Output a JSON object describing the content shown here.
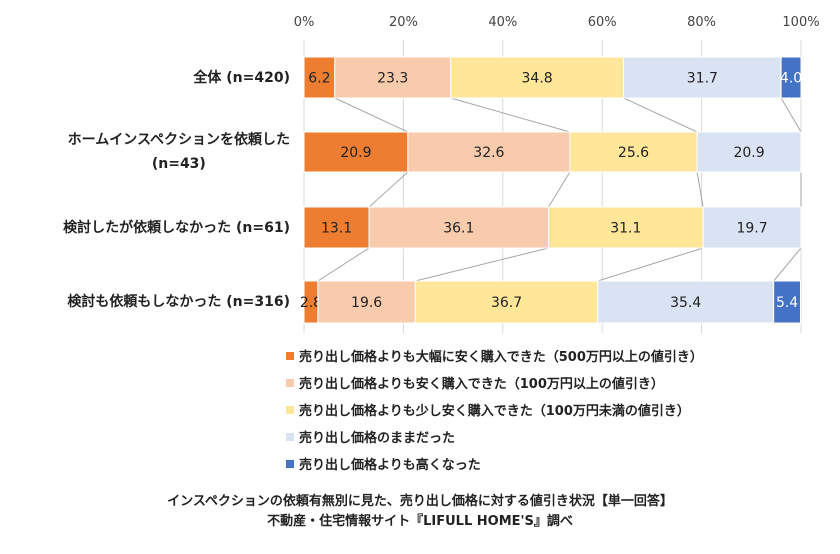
{
  "chart_data": {
    "type": "bar",
    "orientation": "horizontal",
    "stacked": true,
    "categories": [
      "全体 (n=420)",
      "ホームインスペクションを依頼した\n(n=43)",
      "検討したが依頼しなかった (n=61)",
      "検討も依頼もしなかった (n=316)"
    ],
    "series": [
      {
        "name": "売り出し価格よりも大幅に安く購入できた（500万円以上の値引き）",
        "color": "#ED7D31",
        "label_color": "#222222",
        "values": [
          6.2,
          20.9,
          13.1,
          2.8
        ]
      },
      {
        "name": "売り出し価格よりも安く購入できた（100万円以上の値引き）",
        "color": "#F8CBAD",
        "label_color": "#222222",
        "values": [
          23.3,
          32.6,
          36.1,
          19.6
        ]
      },
      {
        "name": "売り出し価格よりも少し安く購入できた（100万円未満の値引き）",
        "color": "#FFE699",
        "label_color": "#222222",
        "values": [
          34.8,
          25.6,
          31.1,
          36.7
        ]
      },
      {
        "name": "売り出し価格のままだった",
        "color": "#DAE3F3",
        "label_color": "#222222",
        "values": [
          31.7,
          20.9,
          19.7,
          35.4
        ]
      },
      {
        "name": "売り出し価格よりも高くなった",
        "color": "#4472C4",
        "label_color": "#ffffff",
        "values": [
          4.0,
          0,
          0,
          5.4
        ]
      }
    ],
    "data_labels": [
      [
        "6.2",
        "23.3",
        "34.8",
        "31.7",
        "4.0"
      ],
      [
        "20.9",
        "32.6",
        "25.6",
        "20.9",
        ""
      ],
      [
        "13.1",
        "36.1",
        "31.1",
        "19.7",
        ""
      ],
      [
        "2.8",
        "19.6",
        "36.7",
        "35.4",
        "5.4"
      ]
    ],
    "xlim": [
      0,
      100
    ],
    "xticks": [
      "0%",
      "20%",
      "40%",
      "60%",
      "80%",
      "100%"
    ],
    "x_axis_position": "top",
    "grid": true,
    "series_lines": true,
    "legend_position": "bottom",
    "title": "インスペクションの依頼有無別に見た、売り出し価格に対する値引き状況【単一回答】",
    "subtitle": "不動産・住宅情報サイト『LIFULL HOME'S』調べ"
  }
}
